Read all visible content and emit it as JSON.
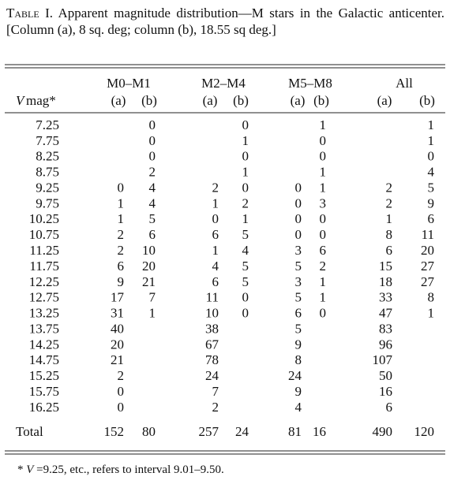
{
  "caption": {
    "label": "Table I.",
    "text": "Apparent magnitude distribution—M stars in the Galactic anticenter. [Column (a), 8 sq. deg; column (b), 18.55 sq deg.]"
  },
  "table": {
    "header": {
      "vmag_var": "V",
      "vmag_rest": "mag*",
      "groups": [
        "M0–M1",
        "M2–M4",
        "M5–M8",
        "All"
      ],
      "sub": [
        "(a)",
        "(b)"
      ]
    },
    "rows": [
      [
        "7.25",
        null,
        0,
        null,
        0,
        null,
        1,
        null,
        1
      ],
      [
        "7.75",
        null,
        0,
        null,
        1,
        null,
        0,
        null,
        1
      ],
      [
        "8.25",
        null,
        0,
        null,
        0,
        null,
        0,
        null,
        0
      ],
      [
        "8.75",
        null,
        2,
        null,
        1,
        null,
        1,
        null,
        4
      ],
      [
        "9.25",
        0,
        4,
        2,
        0,
        0,
        1,
        2,
        5
      ],
      [
        "9.75",
        1,
        4,
        1,
        2,
        0,
        3,
        2,
        9
      ],
      [
        "10.25",
        1,
        5,
        0,
        1,
        0,
        0,
        1,
        6
      ],
      [
        "10.75",
        2,
        6,
        6,
        5,
        0,
        0,
        8,
        11
      ],
      [
        "11.25",
        2,
        10,
        1,
        4,
        3,
        6,
        6,
        20
      ],
      [
        "11.75",
        6,
        20,
        4,
        5,
        5,
        2,
        15,
        27
      ],
      [
        "12.25",
        9,
        21,
        6,
        5,
        3,
        1,
        18,
        27
      ],
      [
        "12.75",
        17,
        7,
        11,
        0,
        5,
        1,
        33,
        8
      ],
      [
        "13.25",
        31,
        1,
        10,
        0,
        6,
        0,
        47,
        1
      ],
      [
        "13.75",
        40,
        null,
        38,
        null,
        5,
        null,
        83,
        null
      ],
      [
        "14.25",
        20,
        null,
        67,
        null,
        9,
        null,
        96,
        null
      ],
      [
        "14.75",
        21,
        null,
        78,
        null,
        8,
        null,
        107,
        null
      ],
      [
        "15.25",
        2,
        null,
        24,
        null,
        24,
        null,
        50,
        null
      ],
      [
        "15.75",
        0,
        null,
        7,
        null,
        9,
        null,
        16,
        null
      ],
      [
        "16.25",
        0,
        null,
        2,
        null,
        4,
        null,
        6,
        null
      ]
    ],
    "total": [
      "Total",
      152,
      80,
      257,
      24,
      81,
      16,
      490,
      120
    ]
  },
  "footnote": {
    "marker": "*",
    "var": "V",
    "text": "=9.25, etc., refers to interval 9.01–9.50."
  }
}
